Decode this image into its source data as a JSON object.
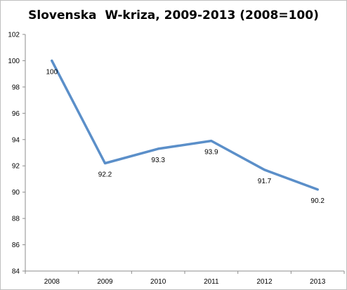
{
  "chart_data": {
    "type": "line",
    "title": "Slovenska  W-kriza, 2009-2013 (2008=100)",
    "categories": [
      "2008",
      "2009",
      "2010",
      "2011",
      "2012",
      "2013"
    ],
    "series": [
      {
        "values": [
          100,
          92.2,
          93.3,
          93.9,
          91.7,
          90.2
        ],
        "data_labels": [
          "100",
          "92.2",
          "93.3",
          "93.9",
          "91.7",
          "90.2"
        ]
      }
    ],
    "ylim": [
      84,
      102
    ],
    "yticks": [
      "84",
      "86",
      "88",
      "90",
      "92",
      "94",
      "96",
      "98",
      "100",
      "102"
    ],
    "xlabel": "",
    "ylabel": "",
    "grid": false,
    "legend": "none",
    "colors": {
      "line": "#5b8fc9",
      "axis": "#8c8c8c",
      "frame": "#bfbfbf"
    }
  }
}
